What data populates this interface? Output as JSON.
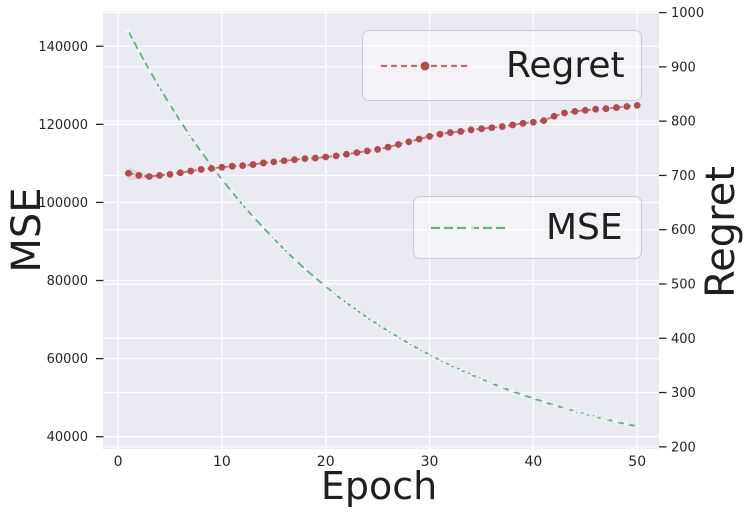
{
  "style": {
    "background": "#ffffff",
    "axes_background": "#eaeaf2",
    "grid_color": "#ffffff",
    "tick_color": "#262626",
    "label_color": "#1f1f1f",
    "legend_border": "#cbcbd3"
  },
  "chart_data": {
    "type": "line",
    "title": "",
    "xlabel": "Epoch",
    "ylabel_left": "MSE",
    "ylabel_right": "Regret",
    "grid": true,
    "x_ticks": [
      0,
      10,
      20,
      30,
      40,
      50
    ],
    "y_ticks_left": [
      40000,
      60000,
      80000,
      100000,
      120000,
      140000
    ],
    "y_ticks_right": [
      200,
      300,
      400,
      500,
      600,
      700,
      800,
      900,
      1000
    ],
    "xlim": [
      -1.45,
      52.1
    ],
    "ylim_left": [
      36850,
      148900
    ],
    "ylim_right": [
      196,
      1002
    ],
    "x": [
      1,
      2,
      3,
      4,
      5,
      6,
      7,
      8,
      9,
      10,
      11,
      12,
      13,
      14,
      15,
      16,
      17,
      18,
      19,
      20,
      21,
      22,
      23,
      24,
      25,
      26,
      27,
      28,
      29,
      30,
      31,
      32,
      33,
      34,
      35,
      36,
      37,
      38,
      39,
      40,
      41,
      42,
      43,
      44,
      45,
      46,
      47,
      48,
      49,
      50
    ],
    "series": [
      {
        "name": "Regret",
        "axis": "right",
        "color": "#c44e52",
        "marker_color": "#b54a4e",
        "linestyle": "dashed",
        "marker": "circle",
        "legend_position": "upper right",
        "values": [
          704,
          700,
          698,
          700,
          702,
          705,
          708,
          711,
          713,
          715,
          717,
          718,
          720,
          723,
          725,
          727,
          729,
          731,
          732,
          734,
          736,
          739,
          742,
          745,
          748,
          752,
          757,
          762,
          767,
          772,
          776,
          779,
          781,
          784,
          786,
          788,
          790,
          793,
          796,
          798,
          801,
          809,
          815,
          818,
          820,
          822,
          823,
          825,
          827,
          829
        ]
      },
      {
        "name": "MSE",
        "axis": "left",
        "color": "#5cb374",
        "marker_color": "#ffffff",
        "linestyle": "dashed",
        "marker": "plus",
        "legend_position": "center right",
        "values": [
          143800,
          138800,
          134000,
          129400,
          125000,
          120800,
          116800,
          113000,
          109400,
          105900,
          102600,
          99400,
          96400,
          93500,
          90700,
          88000,
          85400,
          83000,
          80700,
          78500,
          76300,
          74300,
          72400,
          70500,
          68800,
          67100,
          65500,
          63900,
          62400,
          61000,
          59600,
          58300,
          57100,
          55900,
          54800,
          53700,
          52600,
          51600,
          50700,
          49800,
          48900,
          48100,
          47300,
          46500,
          45800,
          45100,
          44500,
          43800,
          43200,
          42700
        ]
      }
    ],
    "band": {
      "series": "Regret",
      "x": [
        1,
        2,
        3,
        4
      ],
      "upper": [
        716,
        706,
        701,
        701
      ],
      "lower": [
        691,
        693,
        694,
        698
      ],
      "opacity": 0.16
    }
  }
}
